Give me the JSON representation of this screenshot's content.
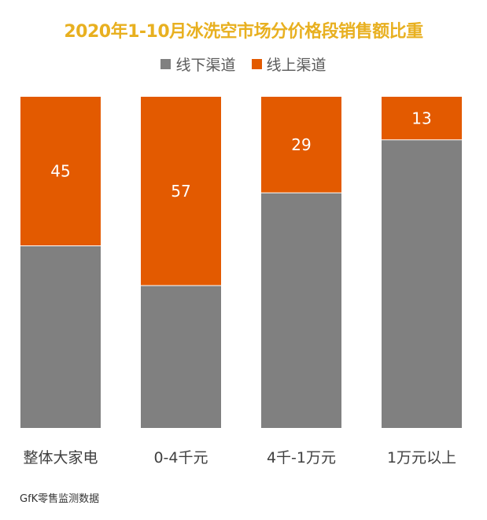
{
  "chart_data": {
    "type": "bar",
    "stacked": true,
    "title": "2020年1-10月冰洗空市场分价格段销售额比重",
    "categories": [
      "整体大家电",
      "0-4千元",
      "4千-1万元",
      "1万元以上"
    ],
    "series": [
      {
        "name": "线下渠道",
        "color": "#808080",
        "values": [
          55,
          43,
          71,
          87
        ]
      },
      {
        "name": "线上渠道",
        "color": "#e35a00",
        "values": [
          45,
          57,
          29,
          13
        ]
      }
    ],
    "data_labels": [
      "45",
      "57",
      "29",
      "13"
    ],
    "ylim": [
      0,
      100
    ],
    "grid": false,
    "legend_position": "top-center"
  },
  "source": "GfK零售监测数据"
}
